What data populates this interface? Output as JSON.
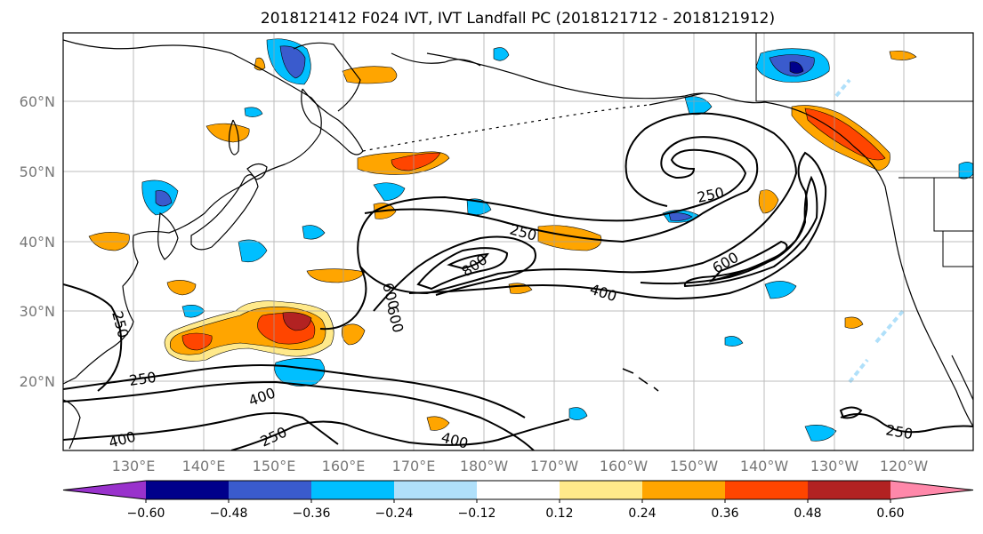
{
  "title": "2018121412 F024 IVT, IVT Landfall PC (2018121712 - 2018121912)",
  "lat_labels": [
    "60°N",
    "50°N",
    "40°N",
    "30°N",
    "20°N"
  ],
  "lon_labels": [
    "130°E",
    "140°E",
    "150°E",
    "160°E",
    "170°E",
    "180°W",
    "170°W",
    "160°W",
    "150°W",
    "140°W",
    "130°W",
    "120°W"
  ],
  "colorbar": {
    "colors": [
      "#9932cc",
      "#00008b",
      "#3a5bcd",
      "#00bfff",
      "#b0e0fa",
      "#ffffff",
      "#ffe98a",
      "#ffa500",
      "#ff4500",
      "#b22222",
      "#ff88aa"
    ],
    "tick_labels": [
      "−0.60",
      "−0.48",
      "−0.36",
      "−0.24",
      "−0.12",
      "0.12",
      "0.24",
      "0.36",
      "0.48",
      "0.60"
    ]
  },
  "contour_labels": [
    "250",
    "250",
    "250",
    "250",
    "250",
    "250",
    "400",
    "400",
    "400",
    "400",
    "600",
    "600",
    "600",
    "800"
  ]
}
